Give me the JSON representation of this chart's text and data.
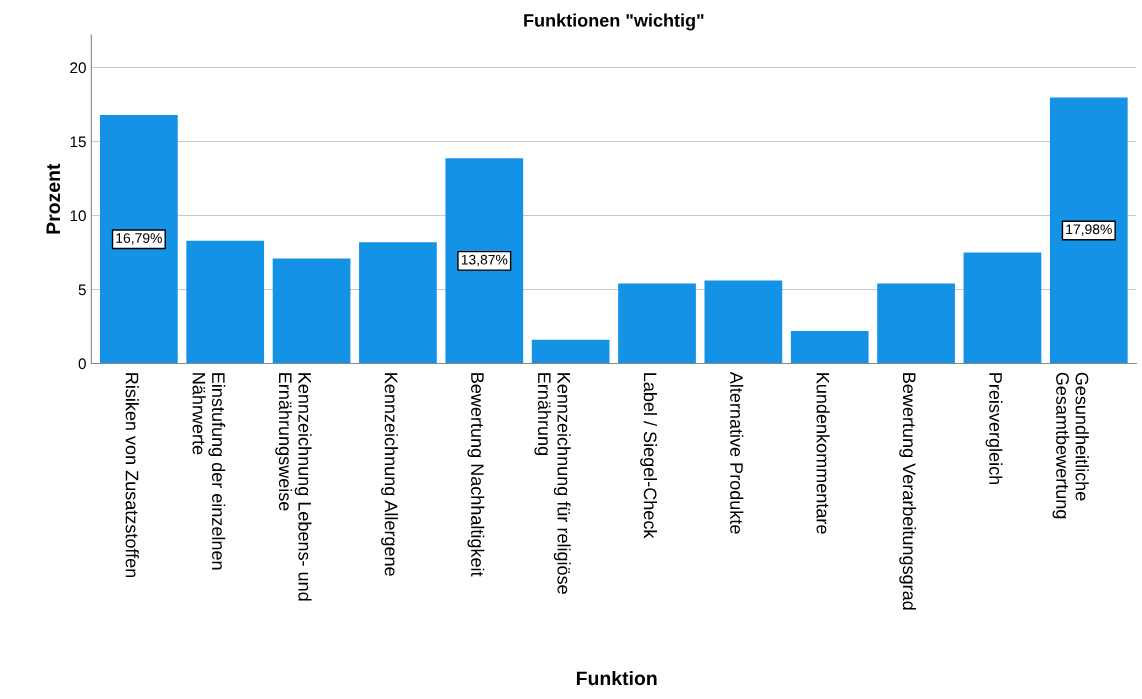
{
  "chart_data": {
    "type": "bar",
    "title": "Funktionen \"wichtig\"",
    "xlabel": "Funktion",
    "ylabel": "Prozent",
    "categories": [
      "Risiken von Zusatzstoffen",
      "Einstufung der einzelnen\nNährwerte",
      "Kennzeichnung Lebens- und\nErnährungsweise",
      "Kennzeichnung Allergene",
      "Bewertung Nachhaltigkeit",
      "Kennzeichnung für religiöse\nErnährung",
      "Label / Siegel-Check",
      "Alternative Produkte",
      "Kundenkommentare",
      "Bewertung Verarbeitungsgrad",
      "Preisvergleich",
      "Gesundheitliche\nGesamtbewertung"
    ],
    "values": [
      16.79,
      8.3,
      7.1,
      8.2,
      13.87,
      1.6,
      5.4,
      5.6,
      2.2,
      5.4,
      7.5,
      17.98
    ],
    "value_labels": [
      "16,79%",
      null,
      null,
      null,
      "13,87%",
      null,
      null,
      null,
      null,
      null,
      null,
      "17,98%"
    ],
    "color": "#1492e6",
    "ylim": [
      0,
      22.2
    ],
    "yticks": [
      0,
      5,
      10,
      15,
      20
    ],
    "grid": "y",
    "legend": false
  }
}
